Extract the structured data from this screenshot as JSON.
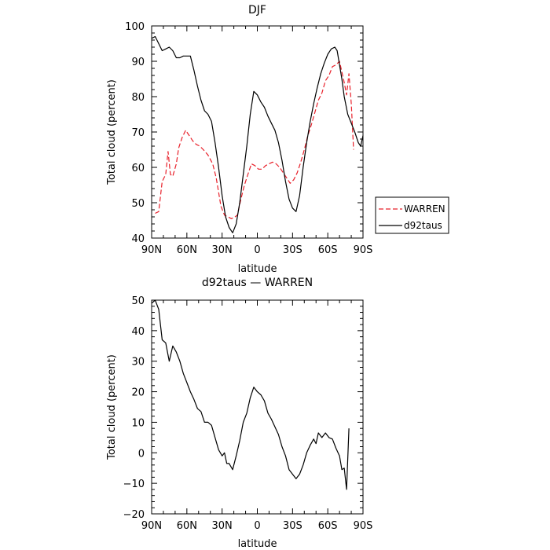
{
  "chart_data": [
    {
      "type": "line",
      "title": "DJF",
      "xlabel": "latitude",
      "ylabel": "Total cloud (percent)",
      "xlim": [
        90,
        -90
      ],
      "ylim": [
        40,
        100
      ],
      "x_ticks": [
        90,
        60,
        30,
        0,
        -30,
        -60,
        -90
      ],
      "x_tick_labels": [
        "90N",
        "60N",
        "30N",
        "0",
        "30S",
        "60S",
        "90S"
      ],
      "y_ticks": [
        40,
        50,
        60,
        70,
        80,
        90,
        100
      ],
      "y_tick_labels": [
        "40",
        "50",
        "60",
        "70",
        "80",
        "90",
        "100"
      ],
      "legend_position": "right, outside plot",
      "series": [
        {
          "name": "WARREN",
          "color": "#e8202a",
          "dash": "dashed",
          "points": [
            [
              87,
              47
            ],
            [
              84,
              47.5
            ],
            [
              81,
              56
            ],
            [
              78,
              58
            ],
            [
              76,
              64.5
            ],
            [
              74,
              58
            ],
            [
              72,
              57.5
            ],
            [
              69,
              61
            ],
            [
              67,
              65.5
            ],
            [
              64,
              68.5
            ],
            [
              61,
              70.5
            ],
            [
              58,
              69
            ],
            [
              55,
              67.5
            ],
            [
              52,
              66.5
            ],
            [
              49,
              66
            ],
            [
              46,
              65
            ],
            [
              42,
              63.5
            ],
            [
              38,
              61
            ],
            [
              35,
              57
            ],
            [
              33,
              53
            ],
            [
              31,
              49
            ],
            [
              28,
              46.5
            ],
            [
              25,
              46
            ],
            [
              22,
              45.5
            ],
            [
              19,
              46
            ],
            [
              17,
              46.5
            ],
            [
              14,
              51
            ],
            [
              11,
              55
            ],
            [
              8,
              58
            ],
            [
              5,
              61
            ],
            [
              2,
              60.5
            ],
            [
              -1,
              59.5
            ],
            [
              -4,
              59.5
            ],
            [
              -7,
              60.5
            ],
            [
              -10,
              61
            ],
            [
              -13,
              61.5
            ],
            [
              -16,
              61
            ],
            [
              -19,
              60
            ],
            [
              -22,
              58.5
            ],
            [
              -25,
              57
            ],
            [
              -28,
              55.5
            ],
            [
              -31,
              56.5
            ],
            [
              -34,
              58.5
            ],
            [
              -37,
              61.5
            ],
            [
              -40,
              65
            ],
            [
              -43,
              69
            ],
            [
              -46,
              72
            ],
            [
              -49,
              75.5
            ],
            [
              -52,
              79
            ],
            [
              -55,
              81
            ],
            [
              -58,
              84.5
            ],
            [
              -61,
              86
            ],
            [
              -64,
              88.5
            ],
            [
              -67,
              89
            ],
            [
              -70,
              90
            ],
            [
              -72,
              87
            ],
            [
              -74,
              84
            ],
            [
              -76,
              80.5
            ],
            [
              -78,
              86.5
            ],
            [
              -80,
              78
            ],
            [
              -82,
              65
            ]
          ]
        },
        {
          "name": "d92taus",
          "color": "#000000",
          "dash": "solid",
          "points": [
            [
              90,
              96.5
            ],
            [
              87,
              97
            ],
            [
              84,
              95
            ],
            [
              81,
              93
            ],
            [
              78,
              93.5
            ],
            [
              75,
              94
            ],
            [
              72,
              93
            ],
            [
              69,
              91
            ],
            [
              66,
              91
            ],
            [
              63,
              91.5
            ],
            [
              60,
              91.5
            ],
            [
              57,
              91.5
            ],
            [
              54,
              87.5
            ],
            [
              51,
              83
            ],
            [
              48,
              79
            ],
            [
              45,
              76
            ],
            [
              42,
              75
            ],
            [
              39,
              73
            ],
            [
              36,
              67
            ],
            [
              33,
              60
            ],
            [
              30,
              52
            ],
            [
              27,
              46
            ],
            [
              24,
              43
            ],
            [
              21,
              41.5
            ],
            [
              18,
              44
            ],
            [
              15,
              50
            ],
            [
              12,
              58
            ],
            [
              9,
              66
            ],
            [
              6,
              75
            ],
            [
              3,
              81.5
            ],
            [
              0,
              80.5
            ],
            [
              -3,
              78.5
            ],
            [
              -6,
              77
            ],
            [
              -9,
              74.5
            ],
            [
              -12,
              72.5
            ],
            [
              -15,
              70.5
            ],
            [
              -18,
              67
            ],
            [
              -21,
              62
            ],
            [
              -24,
              56
            ],
            [
              -27,
              51
            ],
            [
              -30,
              48.5
            ],
            [
              -33,
              47.5
            ],
            [
              -36,
              52
            ],
            [
              -39,
              60
            ],
            [
              -42,
              67
            ],
            [
              -45,
              73
            ],
            [
              -48,
              78
            ],
            [
              -51,
              82.5
            ],
            [
              -54,
              86.5
            ],
            [
              -57,
              89.5
            ],
            [
              -60,
              92
            ],
            [
              -63,
              93.5
            ],
            [
              -66,
              94
            ],
            [
              -68,
              93
            ],
            [
              -70,
              89
            ],
            [
              -72,
              85
            ],
            [
              -74,
              80
            ],
            [
              -77,
              75
            ],
            [
              -80,
              72.5
            ],
            [
              -83,
              70
            ],
            [
              -86,
              67
            ],
            [
              -88,
              66
            ],
            [
              -90,
              69
            ]
          ]
        }
      ]
    },
    {
      "type": "line",
      "title": "d92taus — WARREN",
      "xlabel": "latitude",
      "ylabel": "Total cloud (percent)",
      "xlim": [
        90,
        -90
      ],
      "ylim": [
        -20,
        50
      ],
      "x_ticks": [
        90,
        60,
        30,
        0,
        -30,
        -60,
        -90
      ],
      "x_tick_labels": [
        "90N",
        "60N",
        "30N",
        "0",
        "30S",
        "60S",
        "90S"
      ],
      "y_ticks": [
        -20,
        -10,
        0,
        10,
        20,
        30,
        40,
        50
      ],
      "y_tick_labels": [
        "−20",
        "−10",
        "0",
        "10",
        "20",
        "30",
        "40",
        "50"
      ],
      "series": [
        {
          "color": "#000000",
          "dash": "solid",
          "points": [
            [
              90,
              49
            ],
            [
              87,
              50
            ],
            [
              84,
              47
            ],
            [
              81,
              37
            ],
            [
              78,
              36
            ],
            [
              75,
              30
            ],
            [
              72,
              35
            ],
            [
              69,
              33
            ],
            [
              66,
              30
            ],
            [
              63,
              26
            ],
            [
              60,
              23
            ],
            [
              57,
              20
            ],
            [
              54,
              17.5
            ],
            [
              51,
              14.5
            ],
            [
              48,
              13.5
            ],
            [
              45,
              10
            ],
            [
              42,
              10
            ],
            [
              39,
              9
            ],
            [
              36,
              5
            ],
            [
              33,
              1
            ],
            [
              30,
              -1
            ],
            [
              28,
              0
            ],
            [
              26,
              -3.5
            ],
            [
              24,
              -3.5
            ],
            [
              21,
              -5.5
            ],
            [
              18,
              -1
            ],
            [
              15,
              4
            ],
            [
              12,
              10
            ],
            [
              9,
              13
            ],
            [
              6,
              18
            ],
            [
              3,
              21.5
            ],
            [
              0,
              20
            ],
            [
              -3,
              19
            ],
            [
              -6,
              17
            ],
            [
              -9,
              13
            ],
            [
              -12,
              11
            ],
            [
              -15,
              8.5
            ],
            [
              -18,
              6
            ],
            [
              -21,
              2
            ],
            [
              -24,
              -1
            ],
            [
              -27,
              -5.5
            ],
            [
              -30,
              -7
            ],
            [
              -33,
              -8.5
            ],
            [
              -36,
              -7
            ],
            [
              -39,
              -4
            ],
            [
              -42,
              0
            ],
            [
              -45,
              2.5
            ],
            [
              -48,
              4.5
            ],
            [
              -50,
              3
            ],
            [
              -52,
              6.5
            ],
            [
              -55,
              5
            ],
            [
              -58,
              6.5
            ],
            [
              -61,
              5
            ],
            [
              -64,
              4.5
            ],
            [
              -67,
              1.5
            ],
            [
              -70,
              -1
            ],
            [
              -72,
              -5.5
            ],
            [
              -74,
              -5
            ],
            [
              -76,
              -12
            ],
            [
              -78,
              8
            ]
          ]
        }
      ]
    }
  ]
}
